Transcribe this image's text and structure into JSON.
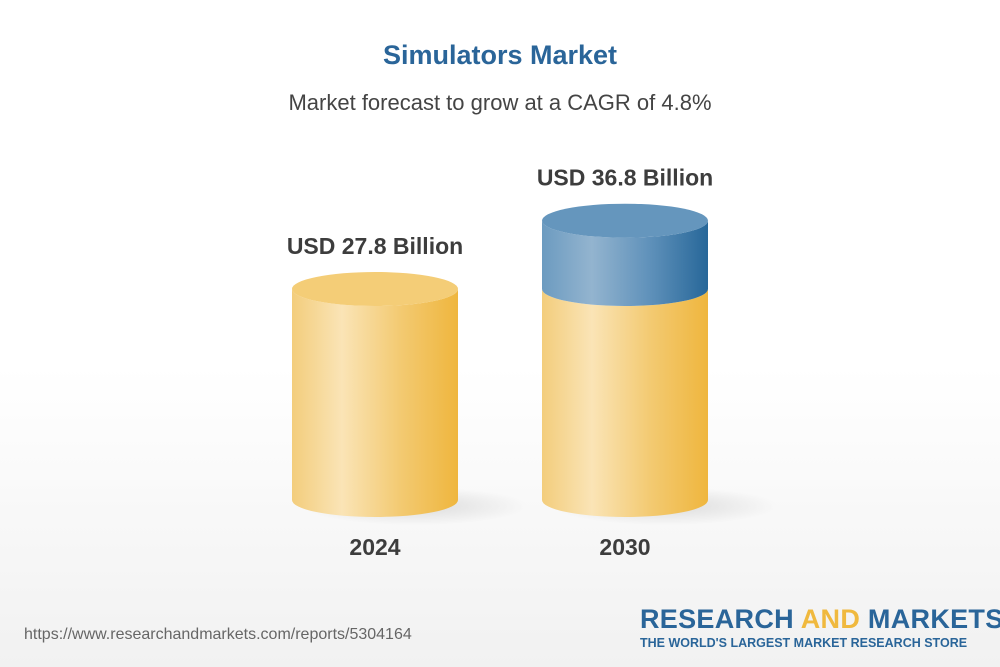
{
  "title": "Simulators Market",
  "subtitle": "Market forecast to grow at a CAGR of 4.8%",
  "chart_data": {
    "type": "bar",
    "style": "3d-cylinder",
    "categories": [
      "2024",
      "2030"
    ],
    "values": [
      27.8,
      36.8
    ],
    "data_labels": [
      "USD 27.8 Billion",
      "USD 36.8 Billion"
    ],
    "unit": "USD Billion",
    "cagr": "4.8%",
    "grid": false,
    "colors": {
      "base": "#f0b93e",
      "growth": "#2a6599"
    }
  },
  "footer": {
    "url": "https://www.researchandmarkets.com/reports/5304164",
    "logo_part1": "RESEARCH ",
    "logo_part2": "AND",
    "logo_part3": " MARKETS",
    "tagline": "THE WORLD'S LARGEST MARKET RESEARCH STORE"
  }
}
